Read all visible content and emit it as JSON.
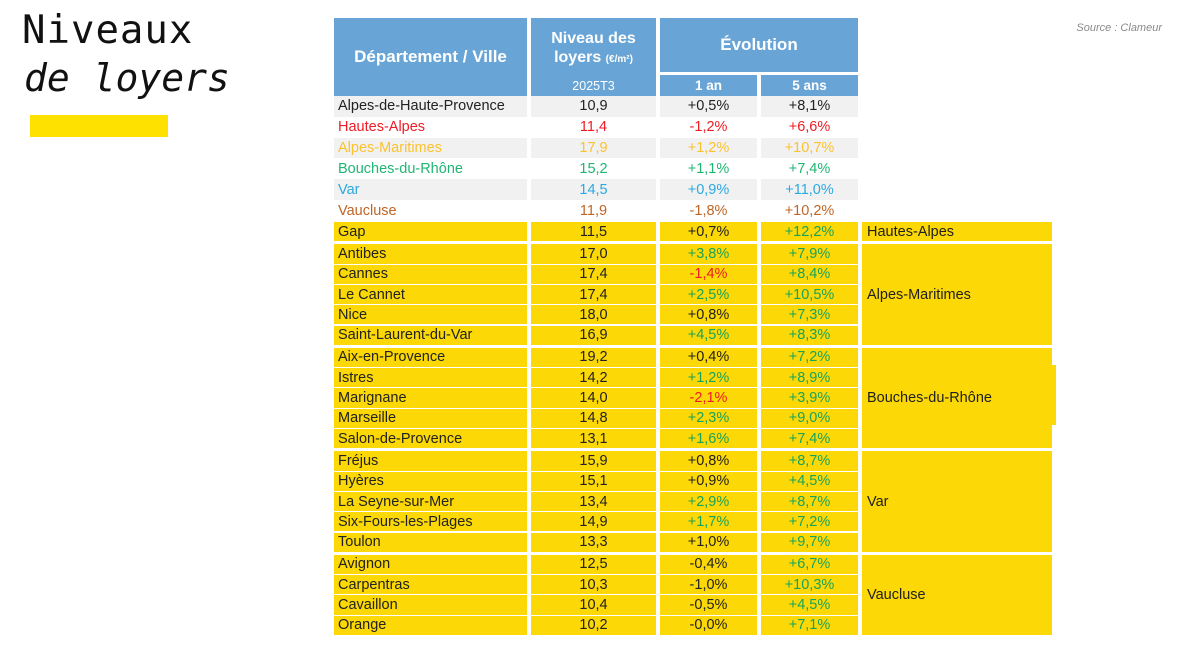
{
  "page": {
    "title_line1": "Niveaux",
    "title_line2": "de loyers",
    "source": "Source : Clameur"
  },
  "colors": {
    "header_blue": "#68a5d6",
    "table_yellow": "#fbd806",
    "accent_yellow": "#ffe100",
    "row_alt_gray": "#f1f1f1",
    "row_white": "#ffffff",
    "text_black": "#222222",
    "up_green": "#17a35a",
    "down_red": "#ee1c25"
  },
  "table": {
    "header": {
      "dept_ville": "Département / Ville",
      "niveau_line1": "Niveau des",
      "niveau_line2": "loyers",
      "niveau_unit": "(€/m²)",
      "niveau_period": "2025T3",
      "evolution": "Évolution",
      "evo_1an": "1 an",
      "evo_5ans": "5 ans"
    },
    "departments": [
      {
        "name": "Alpes-de-Haute-Provence",
        "level": "10,9",
        "evo1": "+0,5%",
        "evo5": "+8,1%",
        "color": "#222222",
        "bg": "#f1f1f1"
      },
      {
        "name": "Hautes-Alpes",
        "level": "11,4",
        "evo1": "-1,2%",
        "evo5": "+6,6%",
        "color": "#ee1c25",
        "bg": "#ffffff"
      },
      {
        "name": "Alpes-Maritimes",
        "level": "17,9",
        "evo1": "+1,2%",
        "evo5": "+10,7%",
        "color": "#fcc22e",
        "bg": "#f1f1f1"
      },
      {
        "name": "Bouches-du-Rhône",
        "level": "15,2",
        "evo1": "+1,1%",
        "evo5": "+7,4%",
        "color": "#21b573",
        "bg": "#ffffff"
      },
      {
        "name": "Var",
        "level": "14,5",
        "evo1": "+0,9%",
        "evo5": "+11,0%",
        "color": "#2ba9e1",
        "bg": "#f1f1f1"
      },
      {
        "name": "Vaucluse",
        "level": "11,9",
        "evo1": "-1,8%",
        "evo5": "+10,2%",
        "color": "#bf6526",
        "bg": "#ffffff"
      }
    ],
    "cities": [
      {
        "name": "Gap",
        "level": "11,5",
        "evo1": "+0,7%",
        "evo1_dir": "neutral",
        "evo5": "+12,2%",
        "evo5_dir": "up",
        "group_start": true
      },
      {
        "name": "Antibes",
        "level": "17,0",
        "evo1": "+3,8%",
        "evo1_dir": "up",
        "evo5": "+7,9%",
        "evo5_dir": "up",
        "group_start": true
      },
      {
        "name": "Cannes",
        "level": "17,4",
        "evo1": "-1,4%",
        "evo1_dir": "down",
        "evo5": "+8,4%",
        "evo5_dir": "up",
        "group_start": false
      },
      {
        "name": "Le Cannet",
        "level": "17,4",
        "evo1": "+2,5%",
        "evo1_dir": "up",
        "evo5": "+10,5%",
        "evo5_dir": "up",
        "group_start": false
      },
      {
        "name": "Nice",
        "level": "18,0",
        "evo1": "+0,8%",
        "evo1_dir": "neutral",
        "evo5": "+7,3%",
        "evo5_dir": "up",
        "group_start": false
      },
      {
        "name": "Saint-Laurent-du-Var",
        "level": "16,9",
        "evo1": "+4,5%",
        "evo1_dir": "up",
        "evo5": "+8,3%",
        "evo5_dir": "up",
        "group_start": false
      },
      {
        "name": "Aix-en-Provence",
        "level": "19,2",
        "evo1": "+0,4%",
        "evo1_dir": "neutral",
        "evo5": "+7,2%",
        "evo5_dir": "up",
        "group_start": true
      },
      {
        "name": "Istres",
        "level": "14,2",
        "evo1": "+1,2%",
        "evo1_dir": "up",
        "evo5": "+8,9%",
        "evo5_dir": "up",
        "group_start": false
      },
      {
        "name": "Marignane",
        "level": "14,0",
        "evo1": "-2,1%",
        "evo1_dir": "down",
        "evo5": "+3,9%",
        "evo5_dir": "up",
        "group_start": false
      },
      {
        "name": "Marseille",
        "level": "14,8",
        "evo1": "+2,3%",
        "evo1_dir": "up",
        "evo5": "+9,0%",
        "evo5_dir": "up",
        "group_start": false
      },
      {
        "name": "Salon-de-Provence",
        "level": "13,1",
        "evo1": "+1,6%",
        "evo1_dir": "up",
        "evo5": "+7,4%",
        "evo5_dir": "up",
        "group_start": false
      },
      {
        "name": "Fréjus",
        "level": "15,9",
        "evo1": "+0,8%",
        "evo1_dir": "neutral",
        "evo5": "+8,7%",
        "evo5_dir": "up",
        "group_start": true
      },
      {
        "name": "Hyères",
        "level": "15,1",
        "evo1": "+0,9%",
        "evo1_dir": "neutral",
        "evo5": "+4,5%",
        "evo5_dir": "up",
        "group_start": false
      },
      {
        "name": "La Seyne-sur-Mer",
        "level": "13,4",
        "evo1": "+2,9%",
        "evo1_dir": "up",
        "evo5": "+8,7%",
        "evo5_dir": "up",
        "group_start": false
      },
      {
        "name": "Six-Fours-les-Plages",
        "level": "14,9",
        "evo1": "+1,7%",
        "evo1_dir": "up",
        "evo5": "+7,2%",
        "evo5_dir": "up",
        "group_start": false
      },
      {
        "name": "Toulon",
        "level": "13,3",
        "evo1": "+1,0%",
        "evo1_dir": "neutral",
        "evo5": "+9,7%",
        "evo5_dir": "up",
        "group_start": false
      },
      {
        "name": "Avignon",
        "level": "12,5",
        "evo1": "-0,4%",
        "evo1_dir": "neutral",
        "evo5": "+6,7%",
        "evo5_dir": "up",
        "group_start": true
      },
      {
        "name": "Carpentras",
        "level": "10,3",
        "evo1": "-1,0%",
        "evo1_dir": "neutral",
        "evo5": "+10,3%",
        "evo5_dir": "up",
        "group_start": false
      },
      {
        "name": "Cavaillon",
        "level": "10,4",
        "evo1": "-0,5%",
        "evo1_dir": "neutral",
        "evo5": "+4,5%",
        "evo5_dir": "up",
        "group_start": false
      },
      {
        "name": "Orange",
        "level": "10,2",
        "evo1": "-0,0%",
        "evo1_dir": "neutral",
        "evo5": "+7,1%",
        "evo5_dir": "up",
        "group_start": false
      }
    ],
    "groups": [
      {
        "label": "Hautes-Alpes",
        "rows": 1
      },
      {
        "label": "Alpes-Maritimes",
        "rows": 5
      },
      {
        "label": "Bouches-du-Rhône",
        "rows": 5
      },
      {
        "label": "Var",
        "rows": 5
      },
      {
        "label": "Vaucluse",
        "rows": 4
      }
    ]
  }
}
